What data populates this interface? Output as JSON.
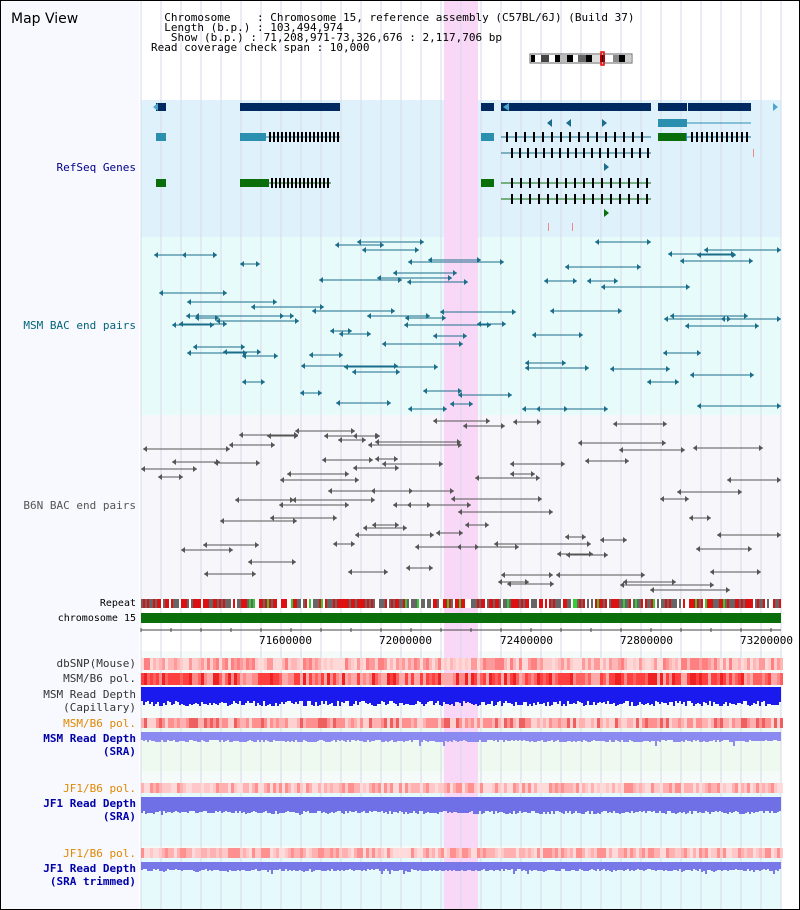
{
  "app_title": "Map View",
  "header": {
    "chromosome": "  Chromosome    : Chromosome 15, reference assembly (C57BL/6J) (Build 37)",
    "length": "  Length (b.p.) : 103,494,974",
    "show": "   Show (b.p.) : 71,208,971-73,326,676 : 2,117,706 bp",
    "coverage": "Read coverage check span : 10,000"
  },
  "tracks": {
    "refseq": "RefSeq Genes",
    "msm_bac": "MSM BAC end pairs",
    "b6n_bac": "B6N BAC end pairs",
    "repeat": "Repeat",
    "chromosome": "chromosome 15",
    "dbsnp": "dbSNP(Mouse)",
    "msm_pol1": "MSM/B6 pol.",
    "msm_depth_cap_1": "MSM Read Depth",
    "msm_depth_cap_2": "(Capillary)",
    "msm_pol2": "MSM/B6 pol.",
    "msm_depth_sra_1": "MSM Read Depth",
    "msm_depth_sra_2": "(SRA)",
    "jf1_pol1": "JF1/B6 pol.",
    "jf1_depth_sra_1": "JF1 Read Depth",
    "jf1_depth_sra_2": "(SRA)",
    "jf1_pol2": "JF1/B6 pol.",
    "jf1_trim_1": "JF1 Read Depth",
    "jf1_trim_2": "(SRA trimmed)"
  },
  "axis": {
    "ticks": [
      "71600000",
      "72000000",
      "72400000",
      "72800000",
      "73200000"
    ]
  },
  "colors": {
    "refseq_bg": "#dff2fb",
    "msm_bg": "#e8fbfb",
    "b6n_bg": "#f6f6fb",
    "highlight": "#f8d8f6",
    "chrom": "#0a6e0a",
    "navy": "#002a60",
    "teal": "#1a6e8a",
    "green": "#0a6e0a",
    "gray": "#555555",
    "label_navy": "#000088",
    "label_teal": "#006677",
    "label_orange": "#e08800",
    "label_blue": "#0000aa"
  }
}
